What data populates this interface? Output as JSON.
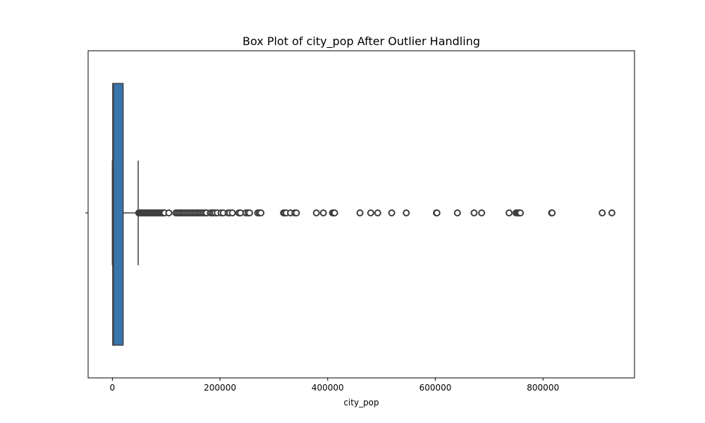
{
  "chart_data": {
    "type": "box",
    "title": "Box Plot of city_pop After Outlier Handling",
    "xlabel": "city_pop",
    "ylabel": "",
    "orientation": "horizontal",
    "xlim": [
      -45000,
      970000
    ],
    "xticks": [
      0,
      200000,
      400000,
      600000,
      800000
    ],
    "xtick_labels": [
      "0",
      "200000",
      "400000",
      "600000",
      "800000"
    ],
    "grid": false,
    "box": {
      "min": 0,
      "q1": 700,
      "median": 2000,
      "q3": 20000,
      "whisker_high": 48000
    },
    "outliers": [
      49000,
      51000,
      53000,
      55000,
      57000,
      59000,
      61000,
      63000,
      65000,
      67000,
      69000,
      71000,
      73000,
      75000,
      77000,
      79000,
      81000,
      83000,
      85000,
      87000,
      89000,
      91000,
      93000,
      95000,
      97000,
      105000,
      118000,
      121000,
      124000,
      127000,
      130000,
      133000,
      136000,
      139000,
      142000,
      145000,
      148000,
      151000,
      154000,
      157000,
      160000,
      163000,
      166000,
      169000,
      172000,
      175000,
      182000,
      185000,
      188000,
      191000,
      195000,
      202000,
      206000,
      215000,
      218000,
      223000,
      235000,
      238000,
      248000,
      252000,
      255000,
      270000,
      273000,
      276000,
      318000,
      320000,
      323000,
      331000,
      339000,
      342000,
      379000,
      392000,
      409000,
      411000,
      413000,
      460000,
      480000,
      493000,
      519000,
      546000,
      602000,
      603000,
      641000,
      672000,
      686000,
      737000,
      750000,
      752000,
      754000,
      756000,
      758000,
      816000,
      817000,
      910000,
      928000
    ],
    "colors": {
      "box_edge": "#3f3f3f",
      "outlier_edge": "#3f3f3f",
      "outlier_fill": "#ffffff"
    }
  }
}
